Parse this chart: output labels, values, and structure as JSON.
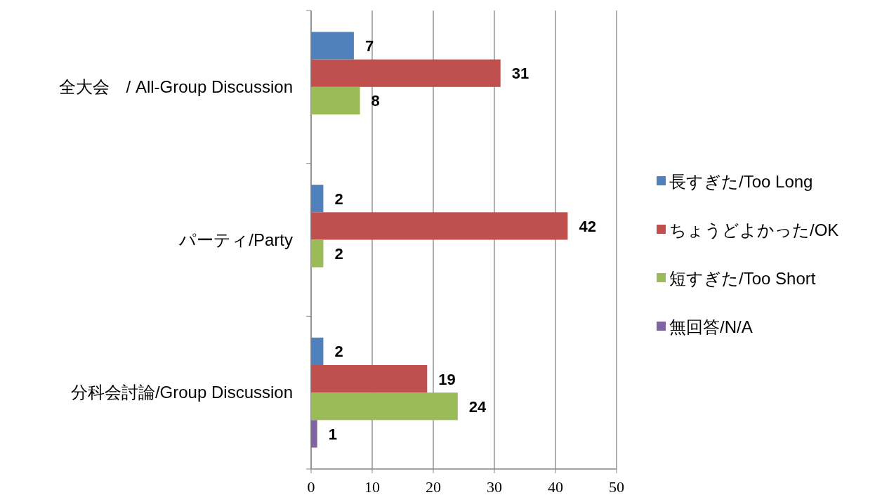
{
  "chart_data": {
    "type": "bar",
    "orientation": "horizontal",
    "categories": [
      "全大会　/ All-Group Discussion",
      "パーティ/Party",
      "分科会討論/Group Discussion"
    ],
    "series": [
      {
        "name": "長すぎた/Too Long",
        "color": "#4f81bd",
        "values": [
          7,
          2,
          2
        ]
      },
      {
        "name": "ちょうどよかった/OK",
        "color": "#c0504d",
        "values": [
          31,
          42,
          19
        ]
      },
      {
        "name": "短すぎた/Too Short",
        "color": "#9bbb59",
        "values": [
          8,
          2,
          24
        ]
      },
      {
        "name": "無回答/N/A",
        "color": "#8064a2",
        "values": [
          null,
          null,
          1
        ]
      }
    ],
    "xlim": [
      0,
      50
    ],
    "xticks": [
      0,
      10,
      20,
      30,
      40,
      50
    ],
    "grid": "x",
    "legend": "right",
    "data_labels": true
  }
}
